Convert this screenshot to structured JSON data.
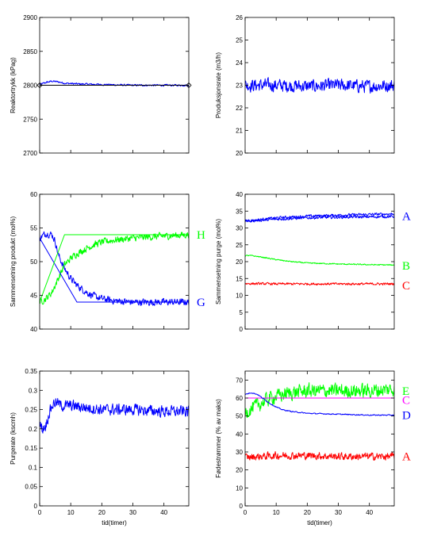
{
  "chart_data": [
    {
      "type": "line",
      "panel": "top-left",
      "ylabel": "Reaktortrykk (kPag)",
      "xlabel": "",
      "xlim": [
        0,
        48
      ],
      "ylim": [
        2700,
        2900
      ],
      "xticks": [
        0,
        10,
        20,
        30,
        40
      ],
      "xtick_labels": [
        "",
        "",
        "",
        "",
        ""
      ],
      "yticks": [
        2700,
        2750,
        2800,
        2850,
        2900
      ],
      "ytick_labels": [
        "2700",
        "2750",
        "2800",
        "2850",
        "2900"
      ],
      "series": [
        {
          "name": "",
          "color": "#0000ff",
          "noise": 1.2,
          "x": [
            0,
            2,
            4,
            6,
            8,
            12,
            20,
            30,
            40,
            48
          ],
          "y": [
            2801,
            2804,
            2806,
            2805,
            2803,
            2802,
            2801,
            2800,
            2800,
            2800
          ]
        },
        {
          "name": "",
          "color": "#000000",
          "noise": 0,
          "marker_ends": true,
          "x": [
            0,
            48
          ],
          "y": [
            2800,
            2800
          ]
        }
      ]
    },
    {
      "type": "line",
      "panel": "top-right",
      "ylabel": "Produksjonsrate (m3/h)",
      "xlabel": "",
      "xlim": [
        0,
        48
      ],
      "ylim": [
        20,
        26
      ],
      "xticks": [
        0,
        10,
        20,
        30,
        40
      ],
      "xtick_labels": [
        "",
        "",
        "",
        "",
        ""
      ],
      "yticks": [
        20,
        21,
        22,
        23,
        24,
        25,
        26
      ],
      "ytick_labels": [
        "20",
        "21",
        "22",
        "23",
        "24",
        "25",
        "26"
      ],
      "series": [
        {
          "name": "",
          "color": "#0000ff",
          "noise": 0.25,
          "x": [
            0,
            10,
            20,
            30,
            40,
            48
          ],
          "y": [
            23.0,
            23.0,
            22.95,
            23.0,
            22.95,
            23.0
          ]
        }
      ]
    },
    {
      "type": "line",
      "panel": "middle-left",
      "ylabel": "Sammensetning produkt (mol%)",
      "xlabel": "",
      "xlim": [
        0,
        48
      ],
      "ylim": [
        40,
        60
      ],
      "xticks": [
        0,
        10,
        20,
        30,
        40
      ],
      "xtick_labels": [
        "",
        "",
        "",
        "",
        ""
      ],
      "yticks": [
        40,
        45,
        50,
        55,
        60
      ],
      "ytick_labels": [
        "40",
        "45",
        "50",
        "55",
        "60"
      ],
      "series": [
        {
          "name": "",
          "color": "#0000ff",
          "noise": 0.45,
          "x": [
            0,
            2,
            4,
            5,
            6,
            8,
            10,
            12,
            14,
            16,
            18,
            20,
            24,
            30,
            40,
            48
          ],
          "y": [
            53.5,
            54.2,
            54.0,
            53.0,
            51.0,
            49.0,
            47.5,
            46.5,
            45.8,
            45.2,
            44.8,
            44.5,
            44.2,
            44.0,
            44.0,
            44.0
          ]
        },
        {
          "name": "",
          "color": "#00ff00",
          "noise": 0.45,
          "x": [
            0,
            2,
            4,
            6,
            8,
            10,
            12,
            14,
            16,
            18,
            20,
            24,
            30,
            40,
            48
          ],
          "y": [
            44.0,
            44.5,
            45.5,
            47.5,
            49.5,
            50.5,
            51.2,
            51.7,
            52.2,
            52.6,
            52.9,
            53.2,
            53.5,
            53.8,
            54.0
          ]
        },
        {
          "name": "",
          "color": "#0000ff",
          "noise": 0,
          "x": [
            0,
            12,
            48
          ],
          "y": [
            53.5,
            44.0,
            44.0
          ]
        },
        {
          "name": "",
          "color": "#00ff00",
          "noise": 0,
          "x": [
            0,
            8,
            48
          ],
          "y": [
            44.0,
            54.0,
            54.0
          ]
        }
      ],
      "annotations": [
        {
          "text": "H",
          "color": "#00ff00",
          "y": 54
        },
        {
          "text": "G",
          "color": "#0000ff",
          "y": 44
        }
      ]
    },
    {
      "type": "line",
      "panel": "middle-right",
      "ylabel": "Sammensetning purge (mol%)",
      "xlabel": "",
      "xlim": [
        0,
        48
      ],
      "ylim": [
        0,
        40
      ],
      "xticks": [
        0,
        10,
        20,
        30,
        40
      ],
      "xtick_labels": [
        "",
        "",
        "",
        "",
        ""
      ],
      "yticks": [
        0,
        5,
        10,
        15,
        20,
        25,
        30,
        35,
        40
      ],
      "ytick_labels": [
        "0",
        "5",
        "10",
        "15",
        "20",
        "25",
        "30",
        "35",
        "40"
      ],
      "series": [
        {
          "name": "",
          "color": "#0000ff",
          "noise": 0.35,
          "x": [
            0,
            5,
            10,
            20,
            30,
            40,
            48
          ],
          "y": [
            32.0,
            32.5,
            33.0,
            33.5,
            33.8,
            34.0,
            34.2
          ]
        },
        {
          "name": "",
          "color": "#0000ff",
          "noise": 0.35,
          "x": [
            0,
            5,
            10,
            20,
            30,
            40,
            48
          ],
          "y": [
            32.0,
            32.3,
            32.6,
            33.0,
            33.2,
            33.3,
            33.4
          ]
        },
        {
          "name": "",
          "color": "#00ff00",
          "noise": 0.15,
          "x": [
            0,
            2,
            5,
            10,
            15,
            20,
            30,
            40,
            48
          ],
          "y": [
            21.8,
            21.8,
            21.4,
            20.6,
            20.0,
            19.6,
            19.3,
            19.1,
            19.0
          ]
        },
        {
          "name": "",
          "color": "#ff0000",
          "noise": 0.3,
          "x": [
            0,
            10,
            20,
            30,
            40,
            48
          ],
          "y": [
            13.5,
            13.4,
            13.4,
            13.4,
            13.4,
            13.4
          ]
        }
      ],
      "annotations": [
        {
          "text": "A",
          "color": "#0000ff",
          "y": 33.5
        },
        {
          "text": "B",
          "color": "#00ff00",
          "y": 18.8
        },
        {
          "text": "C",
          "color": "#ff0000",
          "y": 13.0
        }
      ]
    },
    {
      "type": "line",
      "panel": "bottom-left",
      "ylabel": "Purgerate (kscmh)",
      "xlabel": "tid(timer)",
      "xlim": [
        0,
        48
      ],
      "ylim": [
        0,
        0.35
      ],
      "xticks": [
        0,
        10,
        20,
        30,
        40
      ],
      "xtick_labels": [
        "0",
        "10",
        "20",
        "30",
        "40"
      ],
      "yticks": [
        0,
        0.05,
        0.1,
        0.15,
        0.2,
        0.25,
        0.3,
        0.35
      ],
      "ytick_labels": [
        "0",
        "0.05",
        "0.1",
        "0.15",
        "0.2",
        "0.25",
        "0.3",
        "0.35"
      ],
      "series": [
        {
          "name": "",
          "color": "#0000ff",
          "noise": 0.013,
          "x": [
            0,
            1,
            2,
            3,
            4,
            5,
            7,
            10,
            15,
            20,
            30,
            40,
            48
          ],
          "y": [
            0.21,
            0.2,
            0.21,
            0.24,
            0.26,
            0.27,
            0.26,
            0.26,
            0.255,
            0.25,
            0.25,
            0.245,
            0.245
          ]
        }
      ]
    },
    {
      "type": "line",
      "panel": "bottom-right",
      "ylabel": "Fødestrømmer (% av maks)",
      "xlabel": "tid(timer)",
      "xlim": [
        0,
        48
      ],
      "ylim": [
        0,
        75
      ],
      "xticks": [
        0,
        10,
        20,
        30,
        40
      ],
      "xtick_labels": [
        "0",
        "10",
        "20",
        "30",
        "40"
      ],
      "yticks": [
        0,
        10,
        20,
        30,
        40,
        50,
        60,
        70
      ],
      "ytick_labels": [
        "0",
        "10",
        "20",
        "30",
        "40",
        "50",
        "60",
        "70"
      ],
      "series": [
        {
          "name": "",
          "color": "#00ff00",
          "noise": 3.5,
          "x": [
            0,
            2,
            4,
            6,
            8,
            10,
            15,
            20,
            30,
            40,
            48
          ],
          "y": [
            52,
            54,
            56,
            58,
            60,
            61,
            63,
            64,
            64,
            64,
            65
          ]
        },
        {
          "name": "",
          "color": "#ff00ff",
          "noise": 0,
          "x": [
            0,
            48
          ],
          "y": [
            60,
            60
          ]
        },
        {
          "name": "",
          "color": "#0000ff",
          "noise": 0.25,
          "x": [
            0,
            2,
            4,
            6,
            8,
            10,
            12,
            15,
            20,
            30,
            40,
            48
          ],
          "y": [
            62,
            63,
            62,
            59.5,
            57,
            55,
            53.5,
            52.5,
            51.5,
            51,
            50.5,
            50.5
          ]
        },
        {
          "name": "",
          "color": "#ff0000",
          "noise": 1.8,
          "x": [
            0,
            10,
            20,
            30,
            40,
            48
          ],
          "y": [
            27,
            28,
            28,
            27.5,
            27.5,
            27.5
          ]
        }
      ],
      "annotations": [
        {
          "text": "E",
          "color": "#00ff00",
          "y": 64
        },
        {
          "text": "C",
          "color": "#ff00ff",
          "y": 59
        },
        {
          "text": "D",
          "color": "#0000ff",
          "y": 50.5
        },
        {
          "text": "A",
          "color": "#ff0000",
          "y": 27.5
        }
      ]
    }
  ]
}
